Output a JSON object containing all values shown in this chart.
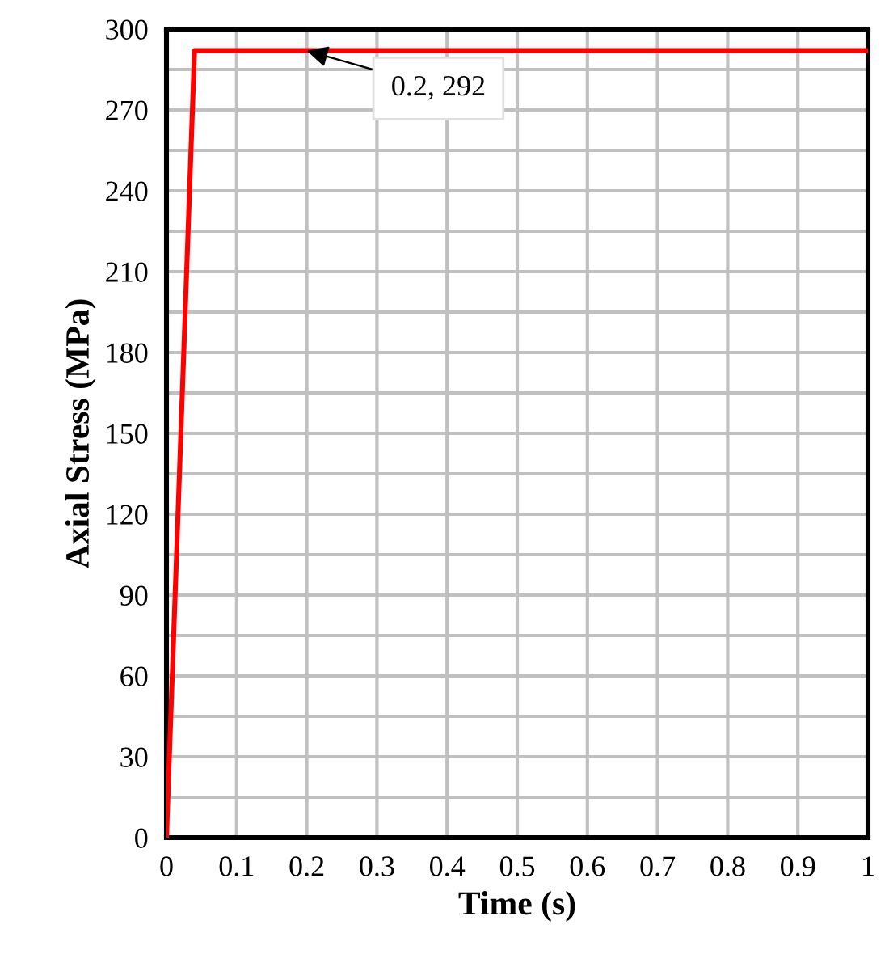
{
  "chart_data": {
    "type": "line",
    "xlabel": "Time (s)",
    "ylabel": "Axial Stress (MPa)",
    "x": [
      0,
      0.04,
      1
    ],
    "series": [
      {
        "color": "#ff0000",
        "values": [
          0,
          292,
          292
        ]
      }
    ],
    "xlim": [
      0,
      1
    ],
    "ylim": [
      0,
      300
    ],
    "xticks": [
      0,
      0.1,
      0.2,
      0.3,
      0.4,
      0.5,
      0.6,
      0.7,
      0.8,
      0.9,
      1
    ],
    "yticks": [
      0,
      {
        "value": 15,
        "label": null
      },
      30,
      {
        "value": 45,
        "label": null
      },
      60,
      {
        "value": 75,
        "label": null
      },
      90,
      {
        "value": 105,
        "label": null
      },
      120,
      {
        "value": 135,
        "label": null
      },
      150,
      {
        "value": 165,
        "label": null
      },
      180,
      {
        "value": 195,
        "label": null
      },
      210,
      {
        "value": 225,
        "label": null
      },
      240,
      {
        "value": 255,
        "label": null
      },
      270,
      {
        "value": 285,
        "label": null
      },
      300
    ],
    "grid": true,
    "marker": "none",
    "line_style": "solid",
    "annotations": [
      {
        "text": "0.2, 292",
        "x": 0.2,
        "y": 292
      }
    ]
  }
}
